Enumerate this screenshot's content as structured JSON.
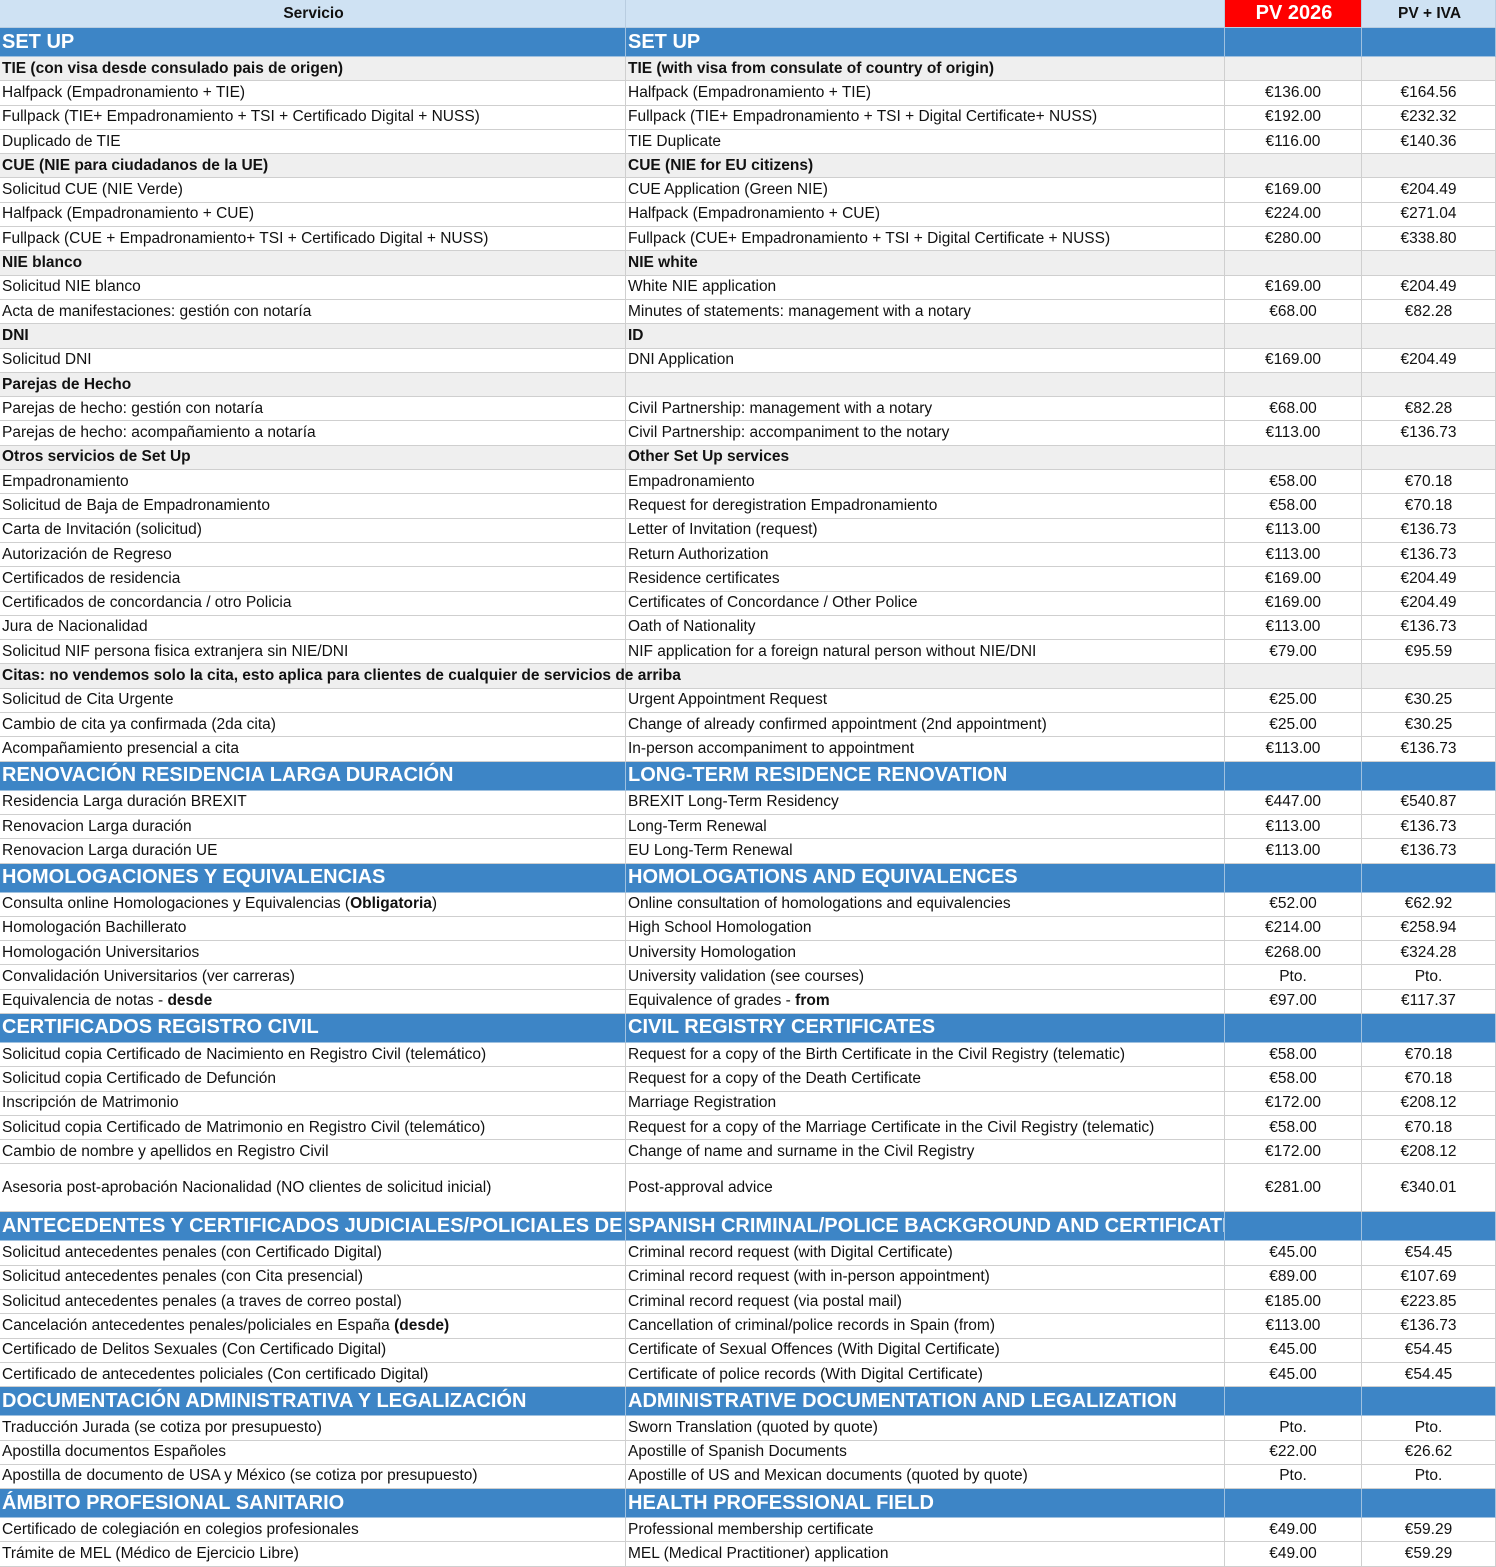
{
  "header": {
    "col_servicio": "Servicio",
    "col_en": "",
    "col_pv": "PV 2026",
    "col_iva": "PV + IVA"
  },
  "colors": {
    "section_bg": "#3d85c6",
    "header_bg": "#cfe2f3",
    "group_bg": "#efefef",
    "pv_header_bg": "#ff0000"
  },
  "rows": [
    {
      "type": "section",
      "es": "SET UP",
      "en": "SET UP",
      "pv": "",
      "iva": ""
    },
    {
      "type": "group",
      "es": "TIE (con visa desde consulado pais de origen)",
      "en": "TIE (with visa from consulate of country of origin)",
      "pv": "",
      "iva": ""
    },
    {
      "type": "item",
      "es": "Halfpack (Empadronamiento + TIE)",
      "en": "Halfpack (Empadronamiento + TIE)",
      "pv": "€136.00",
      "iva": "€164.56"
    },
    {
      "type": "item",
      "es": "Fullpack  (TIE+ Empadronamiento + TSI + Certificado Digital + NUSS)",
      "en": "Fullpack (TIE+ Empadronamiento + TSI + Digital Certificate+ NUSS)",
      "pv": "€192.00",
      "iva": "€232.32"
    },
    {
      "type": "item",
      "es": "Duplicado de TIE",
      "en": "TIE Duplicate",
      "pv": "€116.00",
      "iva": "€140.36"
    },
    {
      "type": "group",
      "es": "CUE (NIE para ciudadanos de la UE)",
      "en": "CUE (NIE for EU citizens)",
      "pv": "",
      "iva": ""
    },
    {
      "type": "item",
      "es": "Solicitud CUE (NIE Verde)",
      "en": "CUE Application (Green NIE)",
      "pv": "€169.00",
      "iva": "€204.49"
    },
    {
      "type": "item",
      "es": "Halfpack (Empadronamiento + CUE)",
      "en": "Halfpack (Empadronamiento + CUE)",
      "pv": "€224.00",
      "iva": "€271.04"
    },
    {
      "type": "item",
      "es": "Fullpack (CUE + Empadronamiento+ TSI + Certificado Digital + NUSS)",
      "en": "Fullpack (CUE+ Empadronamiento + TSI + Digital Certificate + NUSS)",
      "pv": "€280.00",
      "iva": "€338.80"
    },
    {
      "type": "group",
      "es": "NIE blanco",
      "en": "NIE white",
      "pv": "",
      "iva": ""
    },
    {
      "type": "item",
      "es": "Solicitud NIE blanco",
      "en": "White NIE application",
      "pv": "€169.00",
      "iva": "€204.49"
    },
    {
      "type": "item",
      "es": "Acta de manifestaciones: gestión con notaría",
      "en": "Minutes of statements: management with a notary",
      "pv": "€68.00",
      "iva": "€82.28"
    },
    {
      "type": "group",
      "es": "DNI",
      "en": "ID",
      "pv": "",
      "iva": ""
    },
    {
      "type": "item",
      "es": "Solicitud DNI",
      "en": "DNI Application",
      "pv": "€169.00",
      "iva": "€204.49"
    },
    {
      "type": "group",
      "es": "Parejas de Hecho",
      "en": "",
      "pv": "",
      "iva": ""
    },
    {
      "type": "item",
      "es": "Parejas de hecho: gestión con notaría",
      "en": "Civil Partnership: management with a notary",
      "pv": "€68.00",
      "iva": "€82.28"
    },
    {
      "type": "item",
      "es": "Parejas de hecho: acompañamiento a notaría",
      "en": "Civil Partnership: accompaniment to the notary",
      "pv": "€113.00",
      "iva": "€136.73"
    },
    {
      "type": "group",
      "es": "Otros servicios de Set Up",
      "en": "Other Set Up services",
      "pv": "",
      "iva": ""
    },
    {
      "type": "item",
      "es": "Empadronamiento",
      "en": "Empadronamiento",
      "pv": "€58.00",
      "iva": "€70.18"
    },
    {
      "type": "item",
      "es": "Solicitud de Baja de Empadronamiento",
      "en": "Request for deregistration Empadronamiento",
      "pv": "€58.00",
      "iva": "€70.18"
    },
    {
      "type": "item",
      "es": "Carta de Invitación (solicitud)",
      "en": "Letter of Invitation (request)",
      "pv": "€113.00",
      "iva": "€136.73"
    },
    {
      "type": "item",
      "es": "Autorización de Regreso",
      "en": "Return Authorization",
      "pv": "€113.00",
      "iva": "€136.73"
    },
    {
      "type": "item",
      "es": "Certificados de residencia",
      "en": "Residence certificates",
      "pv": "€169.00",
      "iva": "€204.49"
    },
    {
      "type": "item",
      "es": "Certificados de concordancia / otro Policia",
      "en": "Certificates of Concordance / Other Police",
      "pv": "€169.00",
      "iva": "€204.49"
    },
    {
      "type": "item",
      "es": "Jura de Nacionalidad",
      "en": "Oath of Nationality",
      "pv": "€113.00",
      "iva": "€136.73"
    },
    {
      "type": "item",
      "es": "Solicitud NIF persona fisica extranjera sin NIE/DNI",
      "en": "NIF application for a foreign natural person without NIE/DNI",
      "pv": "€79.00",
      "iva": "€95.59"
    },
    {
      "type": "group",
      "es": "Citas: no vendemos solo la cita, esto aplica para clientes de cualquier de servicios de arriba",
      "en": "",
      "pv": "",
      "iva": ""
    },
    {
      "type": "item",
      "es": "Solicitud de Cita Urgente",
      "en": "Urgent Appointment Request",
      "pv": "€25.00",
      "iva": "€30.25"
    },
    {
      "type": "item",
      "es": "Cambio de cita ya confirmada (2da cita)",
      "en": "Change of already confirmed appointment (2nd appointment)",
      "pv": "€25.00",
      "iva": "€30.25"
    },
    {
      "type": "item",
      "es": "Acompañamiento presencial a cita",
      "en": "In-person accompaniment to appointment",
      "pv": "€113.00",
      "iva": "€136.73"
    },
    {
      "type": "section",
      "es": "RENOVACIÓN RESIDENCIA LARGA DURACIÓN",
      "en": "LONG-TERM RESIDENCE RENOVATION",
      "pv": "",
      "iva": ""
    },
    {
      "type": "item",
      "es": "Residencia Larga duración BREXIT",
      "en": "BREXIT Long-Term Residency",
      "pv": "€447.00",
      "iva": "€540.87"
    },
    {
      "type": "item",
      "es": "Renovacion Larga duración",
      "en": "Long-Term Renewal",
      "pv": "€113.00",
      "iva": "€136.73"
    },
    {
      "type": "item",
      "es": "Renovacion Larga duración UE",
      "en": "EU Long-Term Renewal",
      "pv": "€113.00",
      "iva": "€136.73"
    },
    {
      "type": "section",
      "es": "HOMOLOGACIONES Y EQUIVALENCIAS",
      "en": "HOMOLOGATIONS AND EQUIVALENCES",
      "pv": "",
      "iva": ""
    },
    {
      "type": "item",
      "es": [
        {
          "text": "Consulta online Homologaciones y Equivalencias (",
          "bold": false
        },
        {
          "text": "Obligatoria",
          "bold": true
        },
        {
          "text": ")",
          "bold": false
        }
      ],
      "en": "Online consultation of homologations and equivalencies",
      "pv": "€52.00",
      "iva": "€62.92"
    },
    {
      "type": "item",
      "es": "Homologación Bachillerato",
      "en": "High School Homologation",
      "pv": "€214.00",
      "iva": "€258.94"
    },
    {
      "type": "item",
      "es": "Homologación Universitarios",
      "en": "University Homologation",
      "pv": "€268.00",
      "iva": "€324.28"
    },
    {
      "type": "item",
      "es": "Convalidación Universitarios (ver carreras)",
      "en": "University validation (see courses)",
      "pv": "Pto.",
      "iva": "Pto."
    },
    {
      "type": "item",
      "es": [
        {
          "text": "Equivalencia de notas - ",
          "bold": false
        },
        {
          "text": "desde",
          "bold": true
        }
      ],
      "en": [
        {
          "text": "Equivalence of grades - ",
          "bold": false
        },
        {
          "text": "from",
          "bold": true
        }
      ],
      "pv": "€97.00",
      "iva": "€117.37"
    },
    {
      "type": "section",
      "es": "CERTIFICADOS REGISTRO CIVIL",
      "en": "CIVIL REGISTRY CERTIFICATES",
      "pv": "",
      "iva": ""
    },
    {
      "type": "item",
      "es": "Solicitud copia Certificado de Nacimiento en Registro Civil (telemático)",
      "en": "Request for a copy of the Birth Certificate in the Civil Registry (telematic)",
      "pv": "€58.00",
      "iva": "€70.18"
    },
    {
      "type": "item",
      "es": "Solicitud copia Certificado de Defunción",
      "en": "Request for a copy of the Death Certificate",
      "pv": "€58.00",
      "iva": "€70.18"
    },
    {
      "type": "item",
      "es": "Inscripción de Matrimonio",
      "en": "Marriage Registration",
      "pv": "€172.00",
      "iva": "€208.12"
    },
    {
      "type": "item",
      "es": "Solicitud copia Certificado de Matrimonio en Registro Civil (telemático)",
      "en": "Request for a copy of the Marriage Certificate in the Civil Registry (telematic)",
      "pv": "€58.00",
      "iva": "€70.18"
    },
    {
      "type": "item",
      "es": "Cambio de nombre y apellidos en Registro Civil",
      "en": "Change of name and surname in the Civil Registry",
      "pv": "€172.00",
      "iva": "€208.12"
    },
    {
      "type": "item tall",
      "es": "Asesoria post-aprobación Nacionalidad (NO clientes de solicitud inicial)",
      "en": "Post-approval advice",
      "pv": "€281.00",
      "iva": "€340.01"
    },
    {
      "type": "section",
      "es": "ANTECEDENTES Y CERTIFICADOS JUDICIALES/POLICIALES DE ESPAÑA",
      "en": "SPANISH CRIMINAL/POLICE BACKGROUND AND CERTIFICATES",
      "pv": "",
      "iva": ""
    },
    {
      "type": "item",
      "es": "Solicitud antecedentes penales (con Certificado Digital)",
      "en": "Criminal record request (with Digital Certificate)",
      "pv": "€45.00",
      "iva": "€54.45"
    },
    {
      "type": "item",
      "es": "Solicitud antecedentes penales (con Cita presencial)",
      "en": "Criminal record request (with in-person appointment)",
      "pv": "€89.00",
      "iva": "€107.69"
    },
    {
      "type": "item",
      "es": "Solicitud antecedentes penales (a traves de correo postal)",
      "en": "Criminal record request (via postal mail)",
      "pv": "€185.00",
      "iva": "€223.85"
    },
    {
      "type": "item",
      "es": [
        {
          "text": "Cancelación antecedentes penales/policiales en España ",
          "bold": false
        },
        {
          "text": "(desde)",
          "bold": true
        }
      ],
      "en": "Cancellation of criminal/police records in Spain (from)",
      "pv": "€113.00",
      "iva": "€136.73"
    },
    {
      "type": "item",
      "es": "Certificado de Delitos Sexuales (Con Certificado Digital)",
      "en": "Certificate of Sexual Offences (With Digital Certificate)",
      "pv": "€45.00",
      "iva": "€54.45"
    },
    {
      "type": "item",
      "es": "Certificado de antecedentes policiales (Con certificado Digital)",
      "en": "Certificate of police records (With Digital Certificate)",
      "pv": "€45.00",
      "iva": "€54.45"
    },
    {
      "type": "section",
      "es": "DOCUMENTACIÓN ADMINISTRATIVA Y LEGALIZACIÓN",
      "en": "ADMINISTRATIVE DOCUMENTATION AND LEGALIZATION",
      "pv": "",
      "iva": ""
    },
    {
      "type": "item",
      "es": "Traducción Jurada (se cotiza por presupuesto)",
      "en": "Sworn Translation (quoted by quote)",
      "pv": "Pto.",
      "iva": "Pto."
    },
    {
      "type": "item",
      "es": "Apostilla documentos Españoles",
      "en": "Apostille of Spanish Documents",
      "pv": "€22.00",
      "iva": "€26.62"
    },
    {
      "type": "item",
      "es": "Apostilla de documento de USA y México (se cotiza por presupuesto)",
      "en": "Apostille of US and Mexican documents (quoted by quote)",
      "pv": "Pto.",
      "iva": "Pto."
    },
    {
      "type": "section",
      "es": "ÁMBITO PROFESIONAL SANITARIO",
      "en": "HEALTH PROFESSIONAL FIELD",
      "pv": "",
      "iva": ""
    },
    {
      "type": "item",
      "es": "Certificado de colegiación en colegios profesionales",
      "en": "Professional membership certificate",
      "pv": "€49.00",
      "iva": "€59.29"
    },
    {
      "type": "item",
      "es": "Trámite de MEL (Médico de Ejercicio Libre)",
      "en": "MEL (Medical Practitioner) application",
      "pv": "€49.00",
      "iva": "€59.29"
    }
  ]
}
